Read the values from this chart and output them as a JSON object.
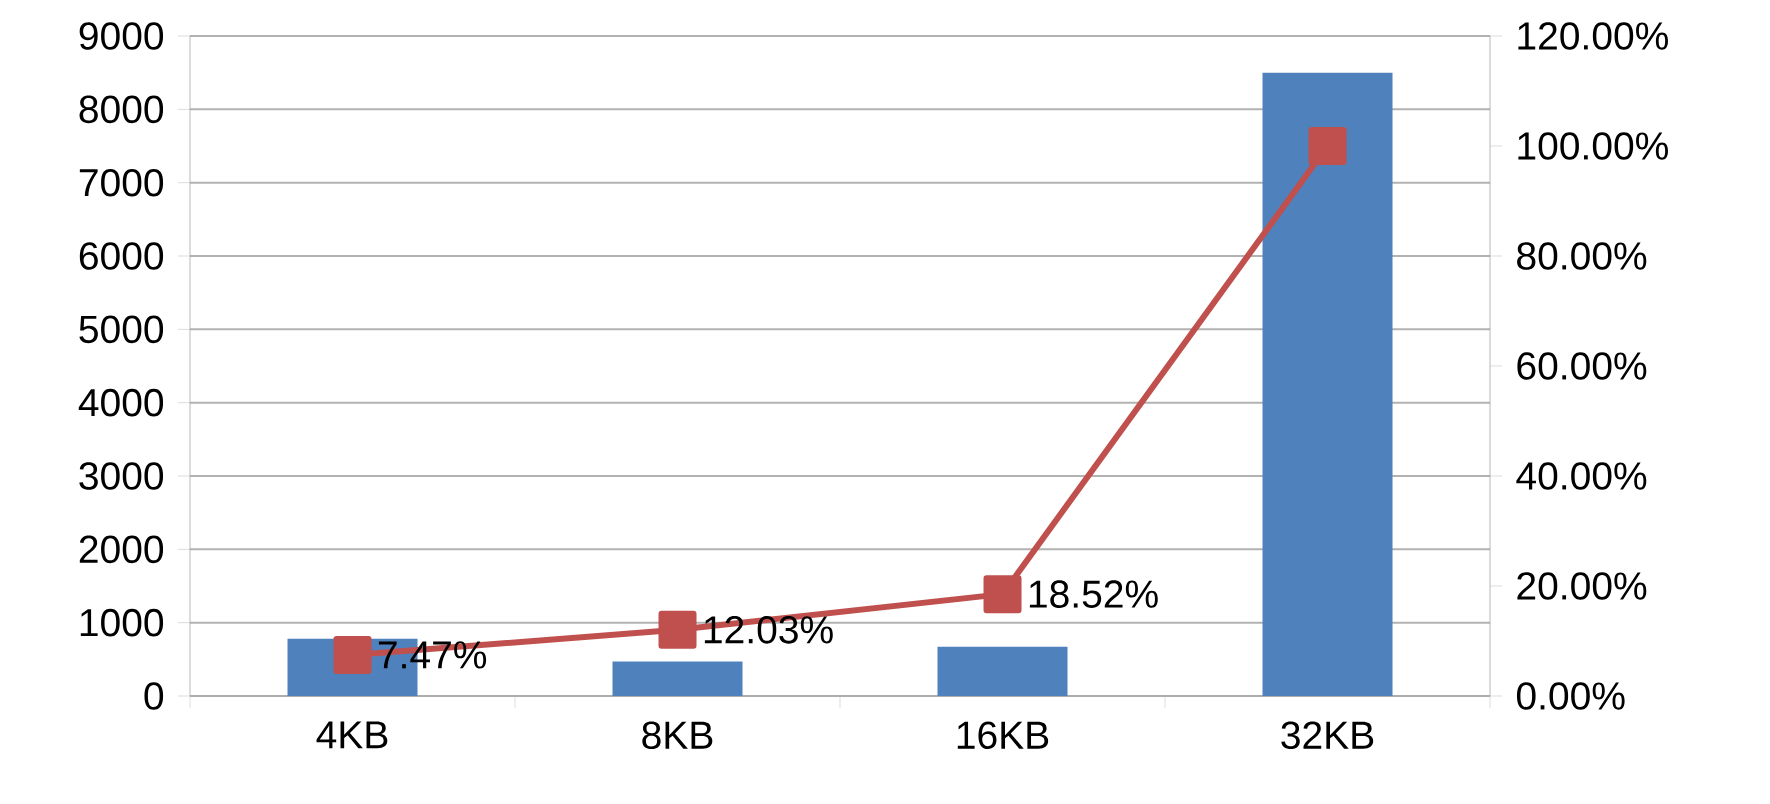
{
  "chart_data": {
    "type": "bar",
    "categories": [
      "4KB",
      "8KB",
      "16KB",
      "32KB"
    ],
    "series": [
      {
        "color": "#4f81bd",
        "values": [
          780,
          470,
          670,
          8500
        ]
      },
      {
        "type": "line",
        "axis": "y2",
        "color": "#c0504d",
        "marker": "square",
        "values": [
          7.47,
          12.03,
          18.52,
          100
        ],
        "value_labels": [
          "7.47%",
          "12.03%",
          "18.52%",
          null
        ]
      }
    ],
    "ylim": [
      0,
      9000
    ],
    "yticks": [
      0,
      1000,
      2000,
      3000,
      4000,
      5000,
      6000,
      7000,
      8000,
      9000
    ],
    "y2lim": [
      0,
      120
    ],
    "y2ticks": [
      {
        "value": 0,
        "label": "0.00%"
      },
      {
        "value": 20,
        "label": "20.00%"
      },
      {
        "value": 40,
        "label": "40.00%"
      },
      {
        "value": 60,
        "label": "60.00%"
      },
      {
        "value": 80,
        "label": "80.00%"
      },
      {
        "value": 100,
        "label": "100.00%"
      },
      {
        "value": 120,
        "label": "120.00%"
      }
    ],
    "grid": "y"
  }
}
